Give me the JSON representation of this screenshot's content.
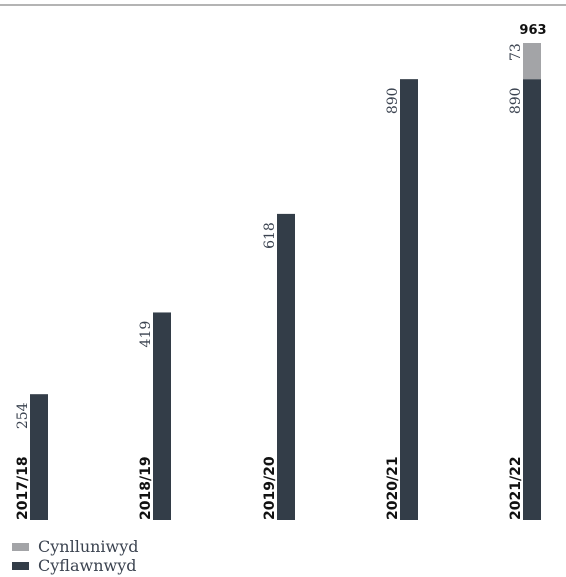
{
  "chart_data": {
    "type": "bar",
    "stacked": true,
    "categories": [
      "2017/18",
      "2018/19",
      "2019/20",
      "2020/21",
      "2021/22"
    ],
    "series": [
      {
        "name": "Cyflawnwyd",
        "values": [
          254,
          419,
          618,
          890,
          890
        ],
        "color": "#333d48"
      },
      {
        "name": "Cynlluniwyd",
        "values": [
          0,
          0,
          0,
          0,
          73
        ],
        "color": "#a3a4a7"
      }
    ],
    "total_labels": [
      null,
      null,
      null,
      null,
      "963"
    ],
    "legend_placement": "bottom-left",
    "grid": false,
    "ylim": [
      0,
      963
    ]
  },
  "legend": {
    "items": [
      {
        "label": "Cynlluniwyd",
        "color": "#a3a4a7"
      },
      {
        "label": "Cyflawnwyd",
        "color": "#333d48"
      }
    ]
  },
  "colors": {
    "top_rule": "#9b9b9b",
    "text": "#3b4350"
  }
}
